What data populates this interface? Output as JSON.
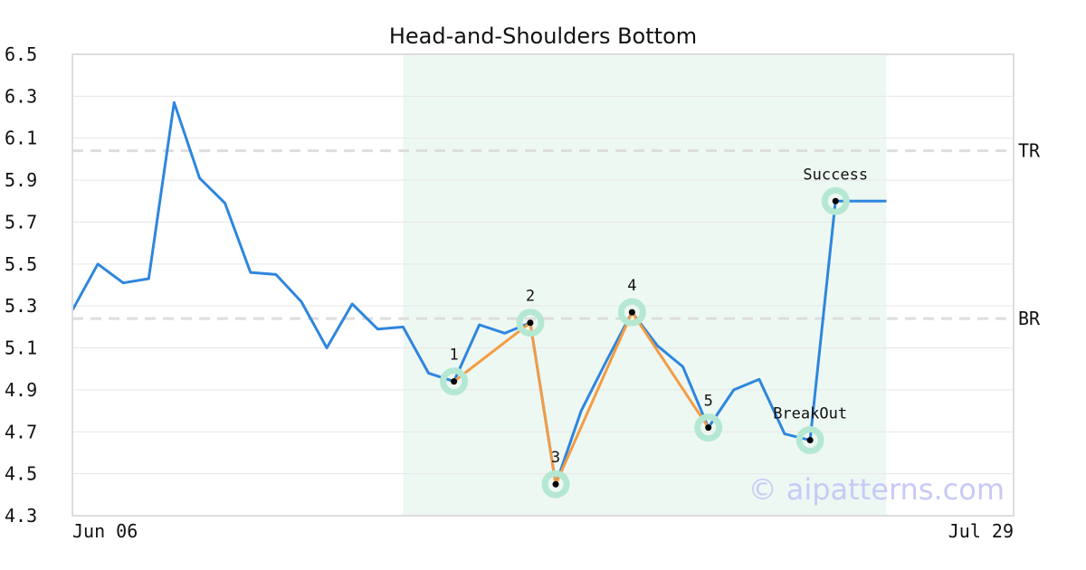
{
  "chart_data": {
    "type": "line",
    "title": "Head-and-Shoulders Bottom",
    "ylim": [
      4.3,
      6.5
    ],
    "yticks": [
      "6.5",
      "6.3",
      "6.1",
      "5.9",
      "5.7",
      "5.5",
      "5.3",
      "5.1",
      "4.9",
      "4.7",
      "4.5",
      "4.3"
    ],
    "xtick_labels": [
      "Jun 06",
      "Jul 29"
    ],
    "x_count": 38,
    "grid": true,
    "series": [
      {
        "values": [
          5.28,
          5.5,
          5.41,
          5.43,
          6.27,
          5.91,
          5.79,
          5.46,
          5.45,
          5.32,
          5.1,
          5.31,
          5.19,
          5.2,
          4.98,
          4.94,
          5.21,
          5.17,
          5.22,
          4.45,
          4.8,
          5.04,
          5.27,
          5.11,
          5.01,
          4.72,
          4.9,
          4.95,
          4.69,
          4.66,
          5.8,
          5.8,
          5.8
        ],
        "color": "#2e86de"
      }
    ],
    "pattern_region": {
      "x_start": 13,
      "x_end": 32,
      "color": "#eef8f3"
    },
    "pattern_lines": [
      {
        "points": [
          [
            15,
            4.94
          ],
          [
            18,
            5.22
          ],
          [
            19,
            4.45
          ],
          [
            22,
            5.27
          ],
          [
            25,
            4.72
          ]
        ],
        "color": "#f39c43"
      }
    ],
    "pattern_points": [
      {
        "label": "1",
        "x": 15,
        "y": 4.94,
        "label_pos": "above"
      },
      {
        "label": "2",
        "x": 18,
        "y": 5.22,
        "label_pos": "above"
      },
      {
        "label": "3",
        "x": 19,
        "y": 4.45,
        "label_pos": "above"
      },
      {
        "label": "4",
        "x": 22,
        "y": 5.27,
        "label_pos": "above"
      },
      {
        "label": "5",
        "x": 25,
        "y": 4.72,
        "label_pos": "above"
      },
      {
        "label": "BreakOut",
        "x": 29,
        "y": 4.66,
        "label_pos": "above"
      },
      {
        "label": "Success",
        "x": 30,
        "y": 5.8,
        "label_pos": "above"
      }
    ],
    "hlines": [
      {
        "label": "TR",
        "y": 6.04
      },
      {
        "label": "BR",
        "y": 5.24
      }
    ],
    "watermark": "© aipatterns.com"
  }
}
